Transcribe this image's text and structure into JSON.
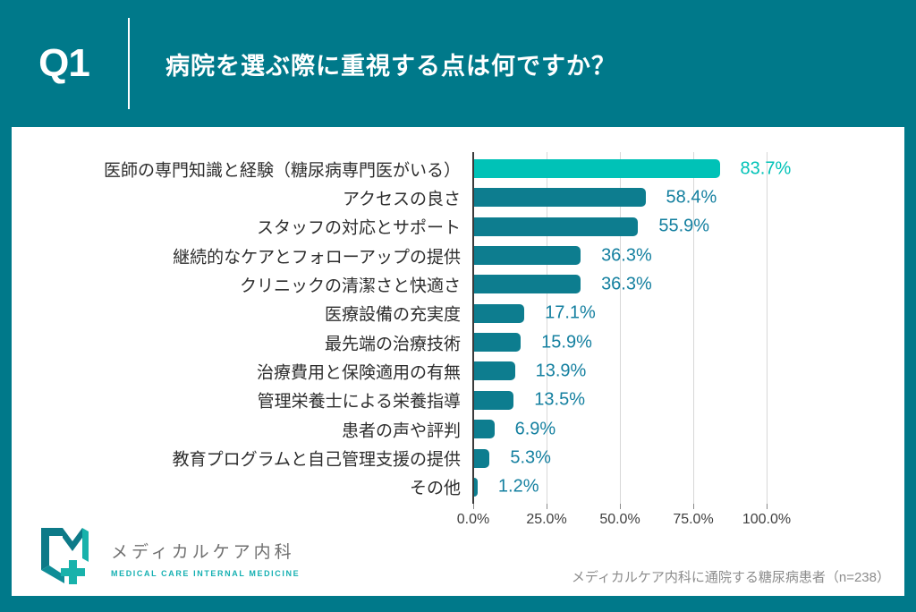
{
  "header": {
    "question_number": "Q1",
    "title": "病院を選ぶ際に重視する点は何ですか？"
  },
  "chart_data": {
    "type": "bar",
    "orientation": "horizontal",
    "title": "病院を選ぶ際に重視する点は何ですか？",
    "categories": [
      "医師の専門知識と経験（糖尿病専門医がいる）",
      "アクセスの良さ",
      "スタッフの対応とサポート",
      "継続的なケアとフォローアップの提供",
      "クリニックの清潔さと快適さ",
      "医療設備の充実度",
      "最先端の治療技術",
      "治療費用と保険適用の有無",
      "管理栄養士による栄養指導",
      "患者の声や評判",
      "教育プログラムと自己管理支援の提供",
      "その他"
    ],
    "values": [
      83.7,
      58.4,
      55.9,
      36.3,
      36.3,
      17.1,
      15.9,
      13.9,
      13.5,
      6.9,
      5.3,
      1.2
    ],
    "value_labels": [
      "83.7%",
      "58.4%",
      "55.9%",
      "36.3%",
      "36.3%",
      "17.1%",
      "15.9%",
      "13.9%",
      "13.5%",
      "6.9%",
      "5.3%",
      "1.2%"
    ],
    "xlabel": "",
    "ylabel": "",
    "xlim": [
      0,
      100
    ],
    "x_ticks": [
      "0.0%",
      "25.0%",
      "50.0%",
      "75.0%",
      "100.0%"
    ],
    "x_tick_values": [
      0,
      25,
      50,
      75,
      100
    ],
    "grid": true,
    "legend": false,
    "highlight_index": 0
  },
  "footer": {
    "logo": {
      "name_jp": "メディカルケア内科",
      "name_en": "MEDICAL CARE INTERNAL MEDICINE"
    },
    "source_note": "メディカルケア内科に通院する糖尿病患者（n=238）"
  },
  "colors": {
    "background": "#00798a",
    "card": "#ffffff",
    "bar": "#0d7d8f",
    "bar_highlight": "#00c2b7",
    "value_text": "#1580a0",
    "value_text_highlight": "#00c2b7",
    "grid": "#d8d8d8",
    "axis": "#3a3a3a",
    "header_text": "#ffffff"
  }
}
